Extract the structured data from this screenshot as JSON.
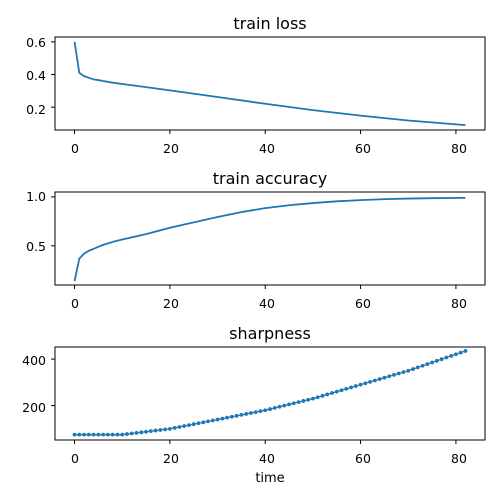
{
  "colors": {
    "series": "#1f77b4",
    "axes": "#000000",
    "background": "#ffffff"
  },
  "chart_data": [
    {
      "type": "line",
      "title": "train loss",
      "xlabel": "",
      "ylabel": "",
      "xlim": [
        -4.1,
        86.1
      ],
      "ylim": [
        0.06,
        0.63
      ],
      "xticks": [
        0,
        20,
        40,
        60,
        80
      ],
      "yticks": [
        0.2,
        0.4,
        0.6
      ],
      "ytick_labels": [
        "0.2",
        "0.4",
        "0.6"
      ],
      "grid": false,
      "series": [
        {
          "x": [
            0,
            1,
            2,
            3,
            4,
            5,
            6,
            8,
            10,
            15,
            20,
            30,
            40,
            50,
            60,
            70,
            82
          ],
          "y": [
            0.6,
            0.41,
            0.39,
            0.38,
            0.37,
            0.366,
            0.36,
            0.35,
            0.342,
            0.323,
            0.303,
            0.262,
            0.221,
            0.182,
            0.148,
            0.118,
            0.09
          ]
        }
      ]
    },
    {
      "type": "line",
      "title": "train accuracy",
      "xlabel": "",
      "ylabel": "",
      "xlim": [
        -4.1,
        86.1
      ],
      "ylim": [
        0.1,
        1.05
      ],
      "xticks": [
        0,
        20,
        40,
        60,
        80
      ],
      "yticks": [
        0.5,
        1.0
      ],
      "ytick_labels": [
        "0.5",
        "1.0"
      ],
      "grid": false,
      "series": [
        {
          "x": [
            0,
            1,
            2,
            3,
            4,
            5,
            6,
            8,
            10,
            15,
            20,
            25,
            30,
            35,
            40,
            45,
            50,
            55,
            60,
            65,
            70,
            75,
            82
          ],
          "y": [
            0.14,
            0.37,
            0.42,
            0.45,
            0.47,
            0.49,
            0.51,
            0.54,
            0.565,
            0.62,
            0.685,
            0.74,
            0.795,
            0.845,
            0.885,
            0.915,
            0.937,
            0.955,
            0.967,
            0.977,
            0.983,
            0.987,
            0.99
          ]
        }
      ]
    },
    {
      "type": "scatter",
      "title": "sharpness",
      "xlabel": "time",
      "ylabel": "",
      "xlim": [
        -4.1,
        86.1
      ],
      "ylim": [
        52,
        452
      ],
      "xticks": [
        0,
        20,
        40,
        60,
        80
      ],
      "yticks": [
        200,
        400
      ],
      "ytick_labels": [
        "200",
        "400"
      ],
      "grid": false,
      "line_with_markers": true,
      "series": [
        {
          "x": [
            0,
            10,
            20,
            30,
            40,
            50,
            60,
            70,
            82
          ],
          "y": [
            75,
            75,
            100,
            140,
            180,
            230,
            290,
            350,
            435
          ]
        }
      ]
    }
  ]
}
